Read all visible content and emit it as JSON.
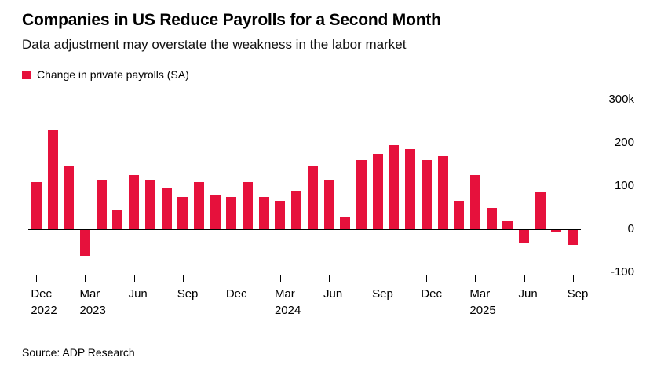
{
  "header": {
    "title": "Companies in US Reduce Payrolls for a Second Month",
    "subtitle": "Data adjustment may overstate the weakness in the labor market"
  },
  "legend": {
    "label": "Change in private payrolls (SA)",
    "color": "#e6113c"
  },
  "source": "Source: ADP Research",
  "chart_data": {
    "type": "bar",
    "title": "Companies in US Reduce Payrolls for a Second Month",
    "subtitle": "Data adjustment may overstate the weakness in the labor market",
    "series_name": "Change in private payrolls (SA)",
    "unit": "thousands of jobs",
    "bar_color": "#e6113c",
    "x": [
      "Dec 2022",
      "Jan 2023",
      "Feb 2023",
      "Mar 2023",
      "Apr 2023",
      "May 2023",
      "Jun 2023",
      "Jul 2023",
      "Aug 2023",
      "Sep 2023",
      "Oct 2023",
      "Nov 2023",
      "Dec 2023",
      "Jan 2024",
      "Feb 2024",
      "Mar 2024",
      "Apr 2024",
      "May 2024",
      "Jun 2024",
      "Jul 2024",
      "Aug 2024",
      "Sep 2024",
      "Oct 2024",
      "Nov 2024",
      "Dec 2024",
      "Jan 2025",
      "Feb 2025",
      "Mar 2025",
      "Apr 2025",
      "May 2025",
      "Jun 2025",
      "Jul 2025",
      "Aug 2025",
      "Sep 2025"
    ],
    "values": [
      110,
      230,
      145,
      -60,
      115,
      45,
      125,
      115,
      95,
      75,
      110,
      80,
      75,
      110,
      75,
      65,
      90,
      145,
      115,
      30,
      160,
      175,
      195,
      185,
      160,
      170,
      65,
      125,
      50,
      20,
      -30,
      85,
      -3,
      -35
    ],
    "y_axis": {
      "range": [
        -100,
        300
      ],
      "ticks": [
        300,
        200,
        100,
        0,
        -100
      ],
      "tick_labels": [
        "300k",
        "200",
        "100",
        "0",
        "-100"
      ]
    },
    "x_axis": {
      "tick_positions": [
        0,
        3,
        6,
        9,
        12,
        15,
        18,
        21,
        24,
        27,
        30,
        33
      ],
      "tick_labels": [
        [
          "Dec",
          "2022"
        ],
        [
          "Mar",
          "2023"
        ],
        [
          "Jun"
        ],
        [
          "Sep"
        ],
        [
          "Dec"
        ],
        [
          "Mar",
          "2024"
        ],
        [
          "Jun"
        ],
        [
          "Sep"
        ],
        [
          "Dec"
        ],
        [
          "Mar",
          "2025"
        ],
        [
          "Jun"
        ],
        [
          "Sep"
        ]
      ]
    },
    "grid": false,
    "legend_position": "top-left",
    "y_labels_side": "right"
  }
}
